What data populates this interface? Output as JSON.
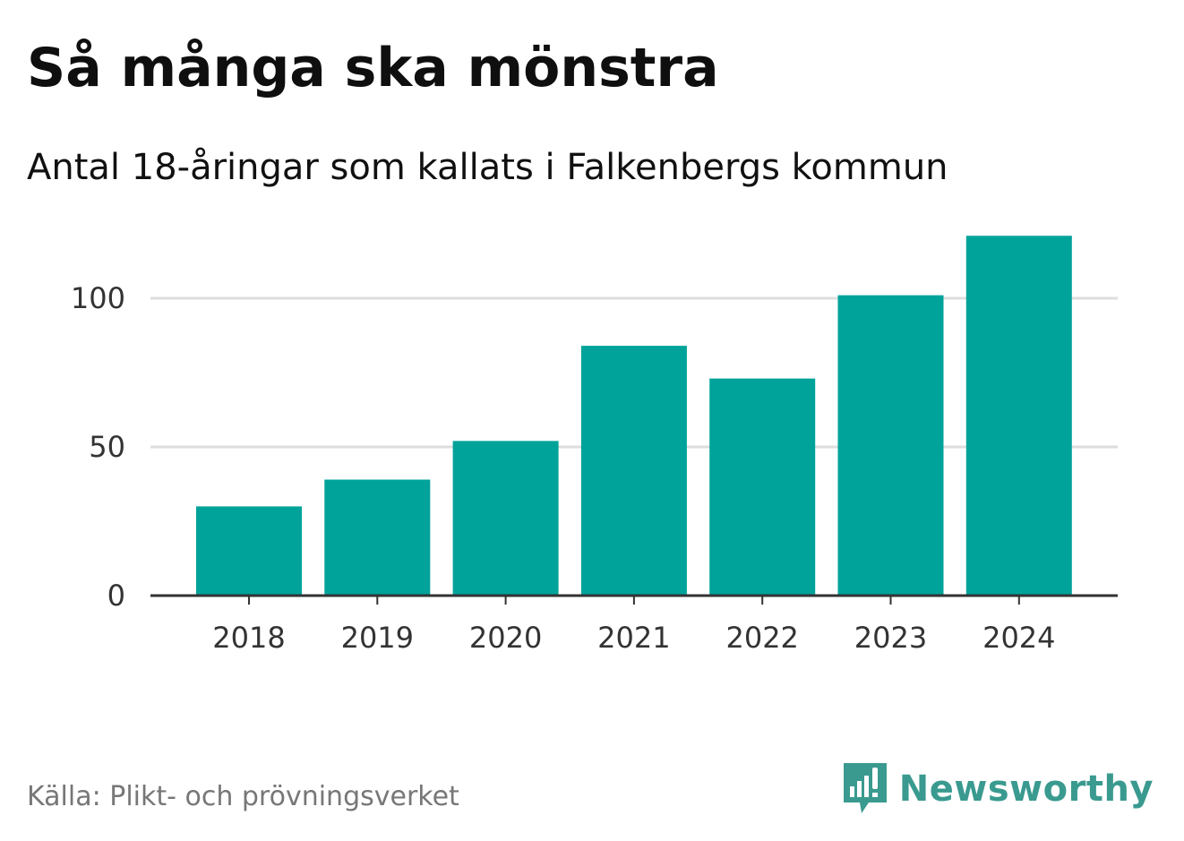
{
  "title": "Så många ska mönstra",
  "subtitle": "Antal 18-åringar som kallats i Falkenbergs kommun",
  "source": "Källa: Plikt- och prövningsverket",
  "brand": {
    "name": "Newsworthy",
    "icon": "newsworthy-logo-icon",
    "color": "#3a9a8f"
  },
  "colors": {
    "bar": "#00a39a",
    "grid": "#dddddd",
    "axis": "#333333"
  },
  "chart_data": {
    "type": "bar",
    "title": "Så många ska mönstra",
    "subtitle": "Antal 18-åringar som kallats i Falkenbergs kommun",
    "categories": [
      "2018",
      "2019",
      "2020",
      "2021",
      "2022",
      "2023",
      "2024"
    ],
    "values": [
      30,
      39,
      52,
      84,
      73,
      101,
      121
    ],
    "xlabel": "",
    "ylabel": "",
    "ylim": [
      0,
      128
    ],
    "yticks": [
      0,
      50,
      100
    ],
    "grid": true,
    "legend": "none"
  }
}
